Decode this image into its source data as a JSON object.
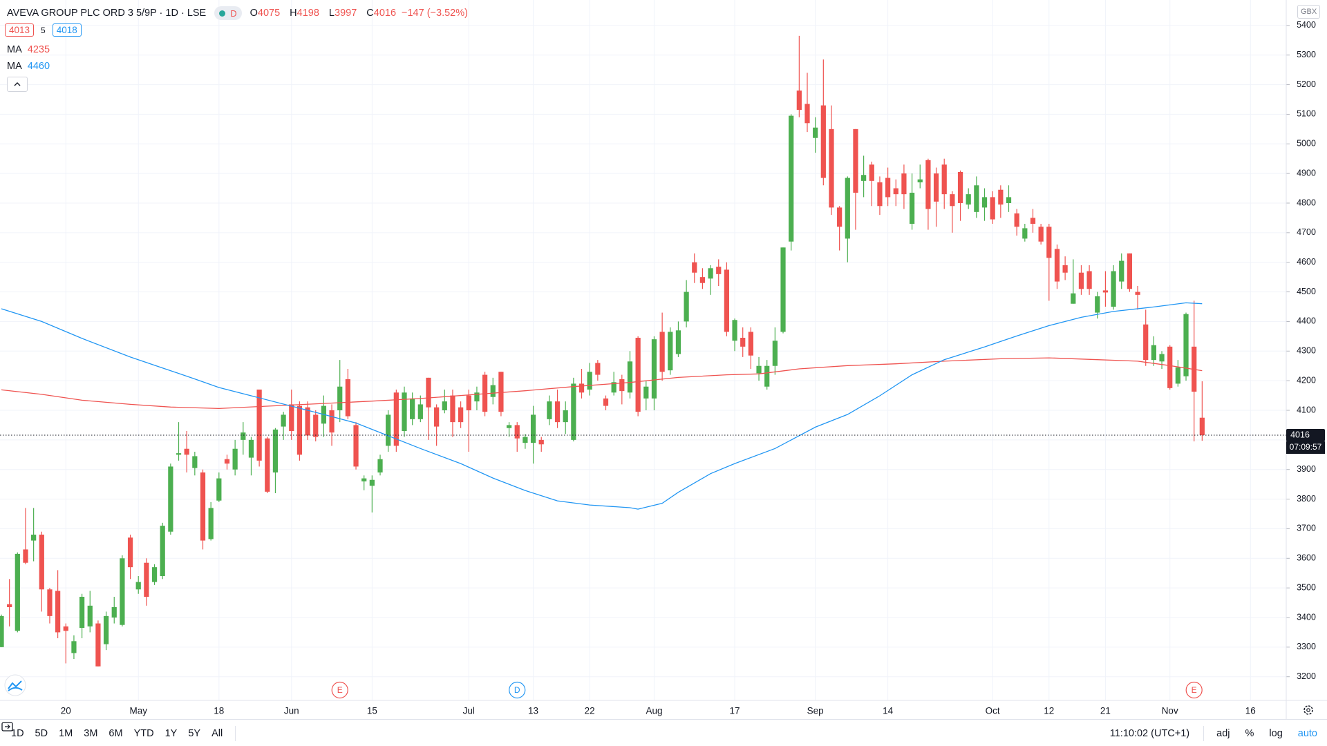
{
  "header": {
    "symbol": "AVEVA GROUP PLC ORD 3 5/9P · 1D · LSE",
    "badge": "D",
    "ohlc_labels": [
      "O",
      "H",
      "L",
      "C"
    ],
    "change": "−147 (−3.52%)",
    "bid": 4013,
    "spread": 5,
    "ask": 4018
  },
  "chart_data": {
    "type": "candlestick",
    "currency": "GBX",
    "up_color": "#4caf50",
    "down_color": "#ef5350",
    "grid": true,
    "categories": [
      null,
      null,
      null,
      null,
      null,
      null,
      null,
      null,
      "20",
      null,
      null,
      null,
      null,
      null,
      null,
      null,
      null,
      "May",
      null,
      null,
      null,
      null,
      null,
      null,
      null,
      null,
      null,
      "18",
      null,
      null,
      null,
      null,
      null,
      null,
      null,
      null,
      "Jun",
      null,
      null,
      null,
      null,
      null,
      null,
      null,
      null,
      null,
      "15",
      null,
      null,
      null,
      null,
      null,
      null,
      null,
      null,
      null,
      null,
      null,
      "Jul",
      null,
      null,
      null,
      null,
      null,
      null,
      null,
      "13",
      null,
      null,
      null,
      null,
      null,
      null,
      "22",
      null,
      null,
      null,
      null,
      null,
      null,
      null,
      "Aug",
      null,
      null,
      null,
      null,
      null,
      null,
      null,
      null,
      null,
      "17",
      null,
      null,
      null,
      null,
      null,
      null,
      null,
      null,
      null,
      "Sep",
      null,
      null,
      null,
      null,
      null,
      null,
      null,
      null,
      "14",
      null,
      null,
      null,
      null,
      null,
      null,
      null,
      null,
      null,
      null,
      null,
      null,
      "Oct",
      null,
      null,
      null,
      null,
      null,
      null,
      "12",
      null,
      null,
      null,
      null,
      null,
      null,
      "21",
      null,
      null,
      null,
      null,
      null,
      null,
      null,
      "Nov",
      null,
      null,
      null,
      null,
      null,
      null,
      null,
      null,
      null,
      "16",
      null,
      null,
      null,
      null
    ],
    "open": [
      3300,
      3445,
      3355,
      3630,
      3660,
      3680,
      3495,
      3490,
      3370,
      3280,
      3365,
      3370,
      3380,
      3310,
      3400,
      3375,
      3670,
      3495,
      3585,
      3520,
      3540,
      3690,
      3950,
      3970,
      3905,
      3890,
      3665,
      3795,
      3935,
      3900,
      4000,
      3940,
      4170,
      4005,
      3890,
      4045,
      4120,
      4115,
      4110,
      4085,
      4055,
      4100,
      4100,
      4205,
      4050,
      3860,
      3845,
      3890,
      3980,
      4160,
      4030,
      4070,
      4070,
      4210,
      4110,
      4100,
      4150,
      4110,
      4150,
      4130,
      4220,
      4145,
      4230,
      4040,
      4050,
      3990,
      3990,
      4000,
      4070,
      4130,
      4060,
      4000,
      4190,
      4170,
      4260,
      4140,
      4160,
      4205,
      4160,
      4345,
      4140,
      4140,
      4365,
      4235,
      4290,
      4400,
      4600,
      4550,
      4545,
      4585,
      4575,
      4335,
      4345,
      4365,
      4225,
      4180,
      4250,
      4365,
      4670,
      5180,
      5135,
      5020,
      5130,
      5050,
      4785,
      4680,
      5050,
      4875,
      4930,
      4870,
      4885,
      4850,
      4900,
      4730,
      4870,
      4945,
      4900,
      4930,
      4830,
      4905,
      4795,
      4770,
      4785,
      4820,
      4845,
      4800,
      4765,
      4680,
      4750,
      4720,
      4720,
      4645,
      4590,
      4460,
      4565,
      4570,
      4430,
      4505,
      4450,
      4535,
      4630,
      4500,
      4390,
      4270,
      4265,
      4315,
      4190,
      4215,
      4315,
      4075,
      null,
      null,
      null,
      null,
      null,
      null,
      null,
      null,
      null,
      null
    ],
    "high": [
      3410,
      3530,
      3620,
      3770,
      3770,
      3690,
      3500,
      3560,
      3380,
      3340,
      3480,
      3490,
      3390,
      3420,
      3470,
      3610,
      3680,
      3540,
      3600,
      3580,
      3720,
      3920,
      4060,
      4030,
      3960,
      3900,
      3790,
      3890,
      3950,
      4000,
      4060,
      4010,
      4170,
      4010,
      4040,
      4095,
      4170,
      4130,
      4130,
      4100,
      4150,
      4120,
      4270,
      4240,
      4060,
      3880,
      3880,
      3950,
      4100,
      4170,
      4180,
      4160,
      4150,
      4210,
      4120,
      4170,
      4170,
      4130,
      4170,
      4180,
      4230,
      4210,
      4230,
      4060,
      4060,
      4020,
      4115,
      4010,
      4150,
      4170,
      4130,
      4210,
      4240,
      4260,
      4270,
      4150,
      4230,
      4220,
      4300,
      4350,
      4200,
      4350,
      4430,
      4380,
      4400,
      4540,
      4630,
      4580,
      4590,
      4610,
      4600,
      4410,
      4380,
      4380,
      4280,
      4270,
      4380,
      4650,
      5100,
      5365,
      5240,
      5090,
      5285,
      5130,
      4790,
      4890,
      5050,
      4960,
      4940,
      4890,
      4920,
      4880,
      4930,
      4900,
      4930,
      4950,
      4920,
      4950,
      4840,
      4910,
      4850,
      4890,
      4850,
      4840,
      4860,
      4860,
      4780,
      4730,
      4780,
      4730,
      4730,
      4660,
      4620,
      4610,
      4590,
      4590,
      4500,
      4570,
      4590,
      4630,
      4630,
      4520,
      4440,
      4350,
      4300,
      4320,
      4270,
      4430,
      4470,
      4198,
      null,
      null,
      null,
      null,
      null,
      null,
      null,
      null,
      null,
      null
    ],
    "low": [
      3300,
      3370,
      3350,
      3580,
      3590,
      3420,
      3380,
      3330,
      3245,
      3260,
      3330,
      3350,
      3235,
      3290,
      3380,
      3370,
      3530,
      3480,
      3440,
      3510,
      3530,
      3680,
      3930,
      3890,
      3880,
      3630,
      3660,
      3790,
      3900,
      3880,
      3950,
      3880,
      3910,
      3820,
      3820,
      4000,
      4000,
      3930,
      4000,
      3995,
      4010,
      3980,
      4060,
      4070,
      3900,
      3830,
      3755,
      3880,
      3960,
      3960,
      4010,
      4050,
      4060,
      4000,
      3980,
      4090,
      4010,
      4040,
      3960,
      4100,
      4080,
      4120,
      4080,
      4010,
      3960,
      3970,
      3920,
      3960,
      4050,
      4040,
      4020,
      3995,
      4140,
      4150,
      4200,
      4100,
      4150,
      4120,
      4140,
      4080,
      4100,
      4100,
      4200,
      4220,
      4280,
      4380,
      4530,
      4510,
      4490,
      4520,
      4350,
      4300,
      4280,
      4240,
      4200,
      4170,
      4220,
      4360,
      4640,
      5090,
      5040,
      4970,
      4860,
      4760,
      4640,
      4600,
      4710,
      4820,
      4790,
      4760,
      4790,
      4790,
      4780,
      4710,
      4850,
      4710,
      4720,
      4780,
      4700,
      4740,
      4780,
      4750,
      4740,
      4730,
      4750,
      4770,
      4690,
      4670,
      4700,
      4660,
      4470,
      4510,
      4540,
      4460,
      4490,
      4490,
      4410,
      4450,
      4440,
      4510,
      4500,
      4440,
      4250,
      4250,
      4240,
      4170,
      4180,
      4200,
      3995,
      3997,
      null,
      null,
      null,
      null,
      null,
      null,
      null,
      null,
      null,
      null
    ],
    "close": [
      3405,
      3435,
      3615,
      3585,
      3680,
      3495,
      3405,
      3350,
      3355,
      3320,
      3470,
      3440,
      3235,
      3405,
      3435,
      3600,
      3570,
      3520,
      3470,
      3570,
      3710,
      3910,
      3955,
      3950,
      3945,
      3660,
      3770,
      3870,
      3920,
      3970,
      4025,
      4000,
      3930,
      3825,
      4035,
      4085,
      4030,
      3950,
      4015,
      4010,
      4115,
      4025,
      4180,
      4080,
      3910,
      3870,
      3865,
      3935,
      4085,
      3980,
      4160,
      4140,
      4120,
      4110,
      4045,
      4130,
      4060,
      4060,
      4100,
      4160,
      4095,
      4185,
      4095,
      4050,
      4005,
      4010,
      4085,
      3985,
      4130,
      4060,
      4100,
      4190,
      4160,
      4230,
      4220,
      4115,
      4195,
      4165,
      4265,
      4095,
      4180,
      4340,
      4230,
      4365,
      4370,
      4500,
      4565,
      4530,
      4580,
      4560,
      4365,
      4405,
      4315,
      4285,
      4250,
      4250,
      4335,
      4650,
      5095,
      5115,
      5070,
      5055,
      4885,
      4785,
      4720,
      4885,
      4835,
      4895,
      4875,
      4790,
      4820,
      4830,
      4830,
      4835,
      4880,
      4780,
      4805,
      4830,
      4790,
      4800,
      4830,
      4860,
      4820,
      4745,
      4795,
      4820,
      4720,
      4715,
      4730,
      4670,
      4615,
      4535,
      4565,
      4495,
      4510,
      4510,
      4485,
      4498,
      4570,
      4605,
      4510,
      4490,
      4270,
      4320,
      4290,
      4175,
      4245,
      4425,
      4163,
      4016,
      null,
      null,
      null,
      null,
      null,
      null,
      null,
      null,
      null,
      null
    ],
    "ylim": [
      3120,
      5486
    ],
    "yticks": [
      3200,
      3300,
      3400,
      3500,
      3600,
      3700,
      3800,
      3900,
      4000,
      4100,
      4200,
      4300,
      4400,
      4500,
      4600,
      4700,
      4800,
      4900,
      5000,
      5100,
      5200,
      5300,
      5400
    ],
    "moving_averages": [
      {
        "name": "MA",
        "color": "#ef5350",
        "last": 4235,
        "x": [
          0,
          5,
          10,
          16,
          21,
          27,
          33,
          40,
          46,
          52,
          59,
          65,
          71,
          78,
          84,
          90,
          94,
          99,
          105,
          111,
          117,
          124,
          130,
          136,
          141,
          145,
          149
        ],
        "values": [
          4169,
          4154,
          4134,
          4120,
          4111,
          4106,
          4114,
          4123,
          4131,
          4140,
          4154,
          4166,
          4180,
          4194,
          4211,
          4220,
          4223,
          4240,
          4251,
          4257,
          4266,
          4274,
          4277,
          4271,
          4266,
          4251,
          4234
        ]
      },
      {
        "name": "MA",
        "color": "#2196f3",
        "last": 4460,
        "x": [
          0,
          5,
          10,
          16,
          20,
          24,
          27,
          31,
          36,
          40,
          44,
          48,
          52,
          57,
          61,
          65,
          69,
          73,
          78,
          79,
          82,
          84,
          88,
          91,
          96,
          101,
          105,
          109,
          113,
          117,
          122,
          126,
          130,
          134,
          138,
          143,
          147,
          149
        ],
        "values": [
          4443,
          4400,
          4343,
          4280,
          4243,
          4206,
          4177,
          4149,
          4114,
          4086,
          4057,
          4014,
          3971,
          3920,
          3871,
          3829,
          3794,
          3780,
          3771,
          3766,
          3786,
          3823,
          3886,
          3920,
          3971,
          4043,
          4086,
          4149,
          4220,
          4271,
          4314,
          4351,
          4386,
          4414,
          4434,
          4449,
          4463,
          4460
        ]
      }
    ],
    "events": [
      null,
      null,
      null,
      null,
      null,
      null,
      null,
      null,
      null,
      null,
      null,
      null,
      null,
      null,
      null,
      null,
      null,
      null,
      null,
      null,
      null,
      null,
      null,
      null,
      null,
      null,
      null,
      null,
      null,
      null,
      null,
      null,
      null,
      null,
      null,
      null,
      null,
      null,
      null,
      null,
      null,
      null,
      "E",
      null,
      null,
      null,
      null,
      null,
      null,
      null,
      null,
      null,
      null,
      null,
      null,
      null,
      null,
      null,
      null,
      null,
      null,
      null,
      null,
      null,
      "D",
      null,
      null,
      null,
      null,
      null,
      null,
      null,
      null,
      null,
      null,
      null,
      null,
      null,
      null,
      null,
      null,
      null,
      null,
      null,
      null,
      null,
      null,
      null,
      null,
      null,
      null,
      null,
      null,
      null,
      null,
      null,
      null,
      null,
      null,
      null,
      null,
      null,
      null,
      null,
      null,
      null,
      null,
      null,
      null,
      null,
      null,
      null,
      null,
      null,
      null,
      null,
      null,
      null,
      null,
      null,
      null,
      null,
      null,
      null,
      null,
      null,
      null,
      null,
      null,
      null,
      null,
      null,
      null,
      null,
      null,
      null,
      null,
      null,
      null,
      null,
      null,
      null,
      null,
      null,
      null,
      null,
      null,
      null,
      "E",
      null,
      null,
      null,
      null,
      null,
      null,
      null,
      null,
      null,
      null,
      null
    ],
    "event_colors": {
      "E": "#ef5350",
      "D": "#2196f3"
    },
    "countdown": "07:09:57"
  },
  "toolbar": {
    "ranges": [
      "1D",
      "5D",
      "1M",
      "3M",
      "6M",
      "YTD",
      "1Y",
      "5Y",
      "All"
    ],
    "clock": "11:10:02 (UTC+1)",
    "options": [
      "adj",
      "%",
      "log",
      "auto"
    ]
  }
}
